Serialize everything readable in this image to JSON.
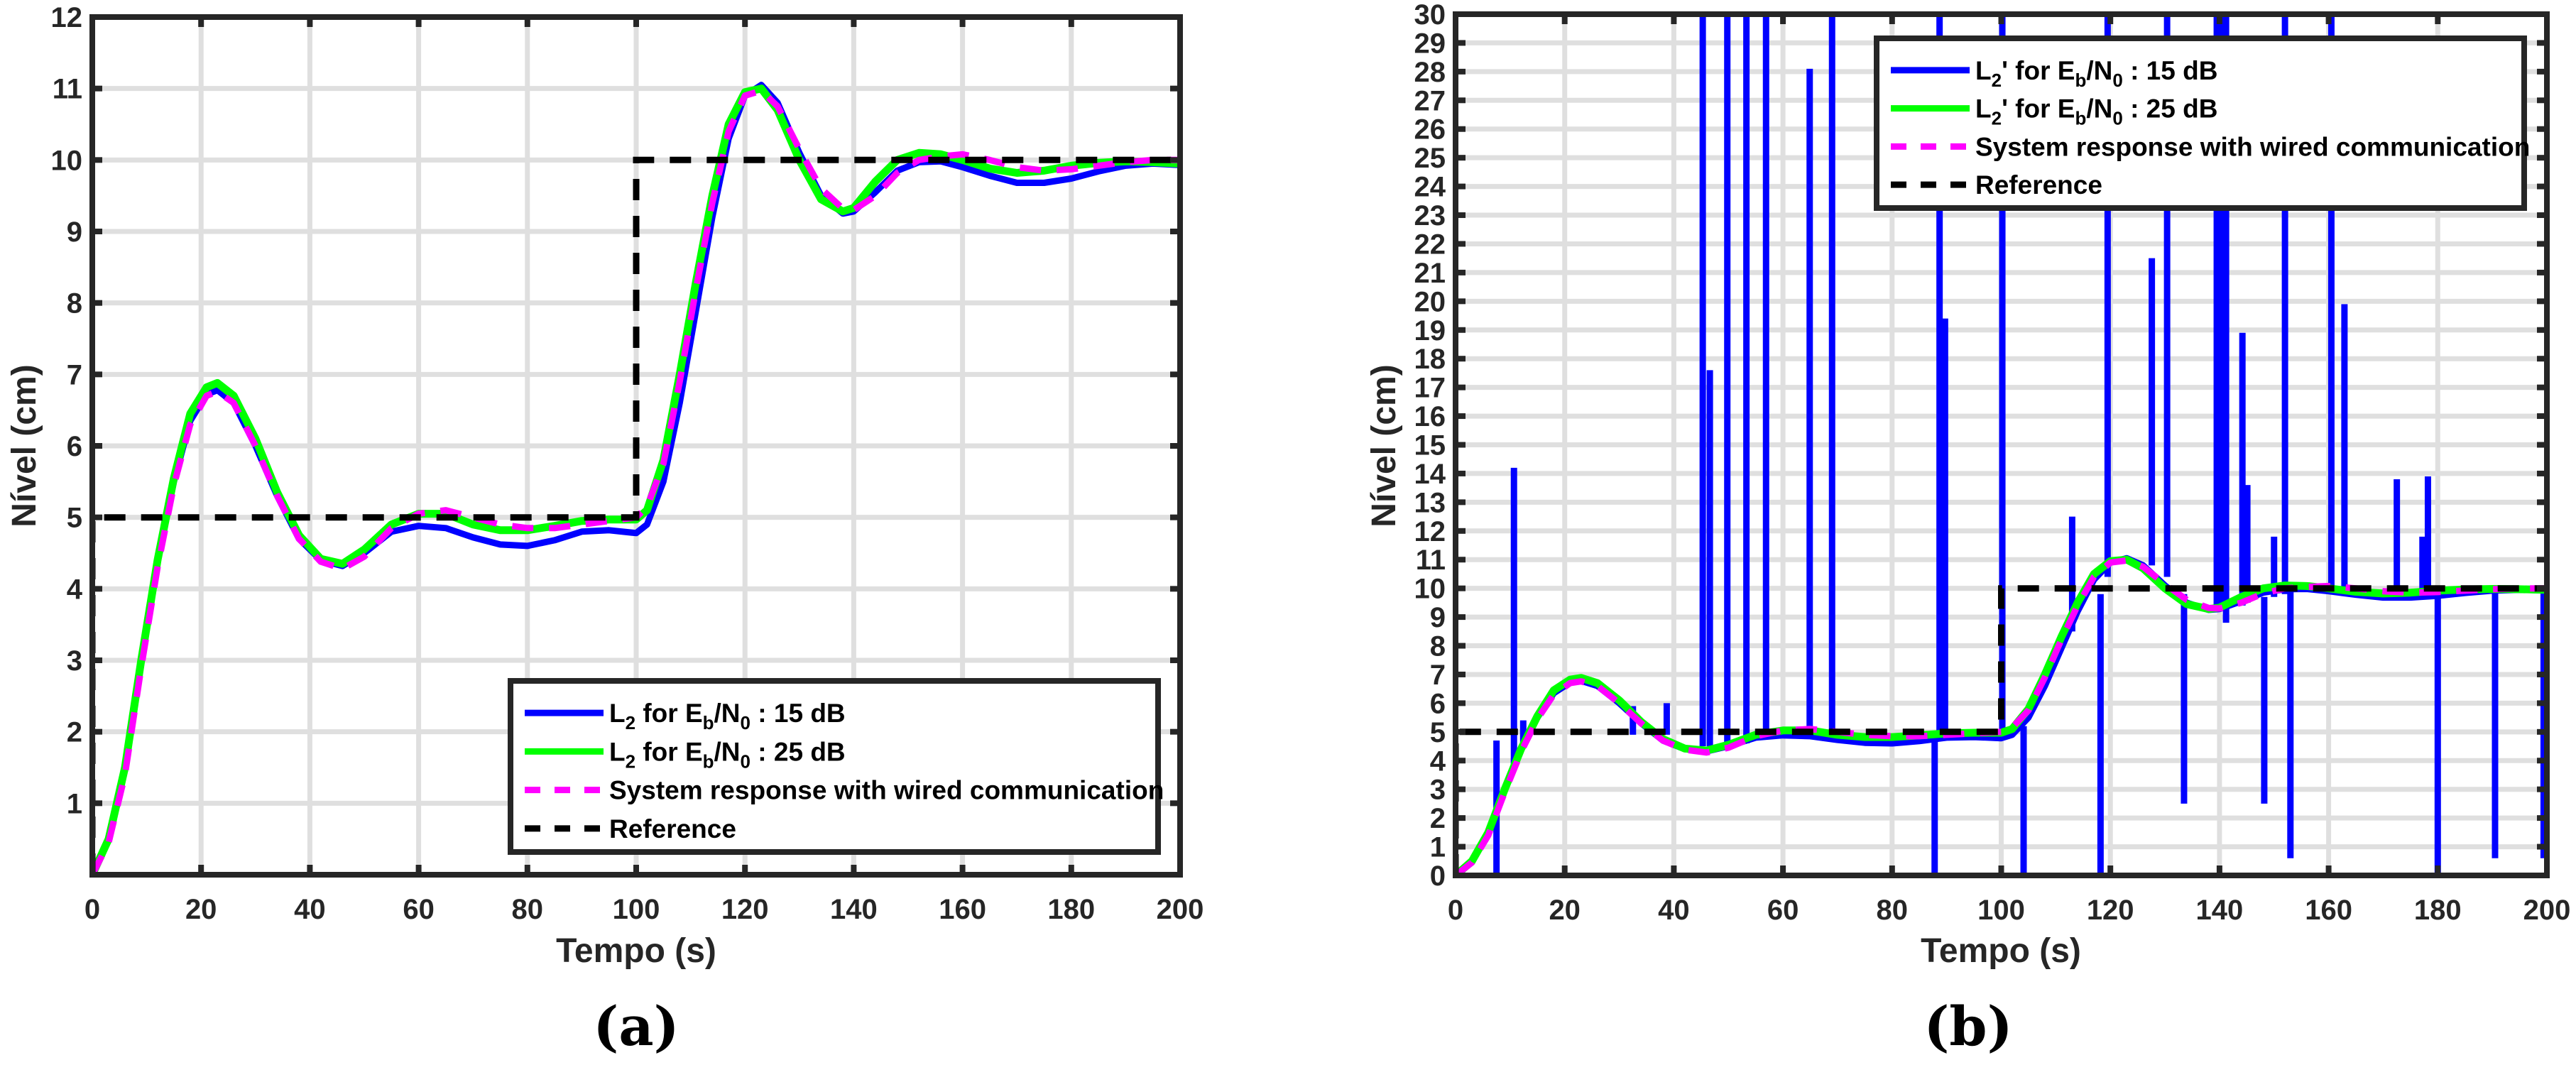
{
  "figure": {
    "panels": [
      {
        "caption": "(a)",
        "xlabel": "Tempo (s)",
        "ylabel": "Nível (cm)",
        "legend": [
          {
            "label": "L2 for Eb/N0 : 15 dB",
            "parts": [
              "L",
              "2",
              " for E",
              "b",
              "/N",
              "0",
              " : 15 dB"
            ],
            "color": "#0000ff",
            "style": "solid"
          },
          {
            "label": "L2 for Eb/N0 : 25 dB",
            "parts": [
              "L",
              "2",
              " for E",
              "b",
              "/N",
              "0",
              " : 25 dB"
            ],
            "color": "#00ff00",
            "style": "solid"
          },
          {
            "label": "System response with wired communication",
            "color": "#ff00ff",
            "style": "dashed"
          },
          {
            "label": "Reference",
            "color": "#000000",
            "style": "dashed"
          }
        ]
      },
      {
        "caption": "(b)",
        "xlabel": "Tempo (s)",
        "ylabel": "Nível (cm)",
        "legend": [
          {
            "label": "L2' for Eb/N0 : 15 dB",
            "parts": [
              "L",
              "2",
              "' for E",
              "b",
              "/N",
              "0",
              " : 15 dB"
            ],
            "color": "#0000ff",
            "style": "solid"
          },
          {
            "label": "L2' for Eb/N0 : 25 dB",
            "parts": [
              "L",
              "2",
              "' for E",
              "b",
              "/N",
              "0",
              " : 25 dB"
            ],
            "color": "#00ff00",
            "style": "solid"
          },
          {
            "label": "System response with wired communication",
            "color": "#ff00ff",
            "style": "dashed"
          },
          {
            "label": "Reference",
            "color": "#000000",
            "style": "dashed"
          }
        ]
      }
    ],
    "colors": {
      "axis": "#262626",
      "grid": "#dfdfdf",
      "blue": "#0000ff",
      "green": "#00ff00",
      "magenta": "#ff00ff",
      "reference": "#000000"
    }
  },
  "chart_data": [
    {
      "type": "line",
      "title": "(a)",
      "xlabel": "Tempo (s)",
      "ylabel": "Nível (cm)",
      "xlim": [
        0,
        200
      ],
      "ylim": [
        0,
        12
      ],
      "xticks": [
        0,
        20,
        40,
        60,
        80,
        100,
        120,
        140,
        160,
        180,
        200
      ],
      "yticks": [
        1,
        2,
        3,
        4,
        5,
        6,
        7,
        8,
        9,
        10,
        11,
        12
      ],
      "grid": true,
      "legend_position": "lower right",
      "x": [
        0,
        3,
        6,
        9,
        12,
        15,
        18,
        21,
        23,
        26,
        30,
        34,
        38,
        42,
        46,
        50,
        55,
        60,
        65,
        70,
        75,
        80,
        85,
        90,
        95,
        100,
        102,
        105,
        108,
        111,
        114,
        117,
        120,
        123,
        126,
        130,
        134,
        138,
        140,
        144,
        148,
        152,
        156,
        160,
        165,
        170,
        175,
        180,
        185,
        190,
        195,
        200
      ],
      "series": [
        {
          "name": "L2 for Eb/N0 : 15 dB",
          "color": "#0000ff",
          "style": "solid",
          "values": [
            0,
            0.5,
            1.5,
            3.0,
            4.4,
            5.5,
            6.35,
            6.72,
            6.78,
            6.6,
            6.0,
            5.3,
            4.7,
            4.4,
            4.32,
            4.5,
            4.8,
            4.88,
            4.85,
            4.72,
            4.62,
            4.6,
            4.68,
            4.8,
            4.82,
            4.78,
            4.9,
            5.5,
            6.6,
            7.9,
            9.2,
            10.3,
            10.9,
            11.05,
            10.8,
            10.1,
            9.5,
            9.25,
            9.28,
            9.55,
            9.85,
            9.97,
            9.98,
            9.9,
            9.78,
            9.68,
            9.68,
            9.74,
            9.84,
            9.92,
            9.95,
            9.93
          ]
        },
        {
          "name": "L2 for Eb/N0 : 25 dB",
          "color": "#00ff00",
          "style": "solid",
          "values": [
            0,
            0.5,
            1.5,
            3.0,
            4.4,
            5.55,
            6.45,
            6.82,
            6.88,
            6.7,
            6.1,
            5.35,
            4.75,
            4.42,
            4.35,
            4.55,
            4.9,
            5.05,
            5.05,
            4.9,
            4.82,
            4.82,
            4.88,
            4.95,
            4.97,
            4.97,
            5.1,
            5.8,
            7.0,
            8.3,
            9.5,
            10.5,
            10.95,
            11.0,
            10.7,
            10.0,
            9.45,
            9.28,
            9.33,
            9.7,
            10.0,
            10.1,
            10.08,
            10.0,
            9.88,
            9.82,
            9.85,
            9.92,
            9.96,
            9.98,
            9.97,
            9.95
          ]
        },
        {
          "name": "System response with wired communication",
          "color": "#ff00ff",
          "style": "dashed",
          "values": [
            0,
            0.45,
            1.4,
            2.9,
            4.3,
            5.45,
            6.3,
            6.7,
            6.76,
            6.6,
            6.0,
            5.3,
            4.7,
            4.38,
            4.28,
            4.45,
            4.85,
            5.05,
            5.1,
            5.0,
            4.9,
            4.85,
            4.85,
            4.9,
            4.95,
            5.0,
            5.15,
            5.75,
            6.9,
            8.2,
            9.4,
            10.4,
            10.9,
            10.97,
            10.75,
            10.15,
            9.6,
            9.32,
            9.3,
            9.5,
            9.82,
            10.0,
            10.05,
            10.08,
            10.0,
            9.9,
            9.85,
            9.87,
            9.92,
            9.97,
            10.0,
            10.0
          ]
        },
        {
          "name": "Reference",
          "color": "#000000",
          "style": "dashed",
          "x": [
            0,
            0,
            100,
            100,
            200
          ],
          "values": [
            0,
            5,
            5,
            10,
            10
          ]
        }
      ]
    },
    {
      "type": "line",
      "title": "(b)",
      "xlabel": "Tempo (s)",
      "ylabel": "Nível (cm)",
      "xlim": [
        0,
        200
      ],
      "ylim": [
        0,
        30
      ],
      "xticks": [
        0,
        20,
        40,
        60,
        80,
        100,
        120,
        140,
        160,
        180,
        200
      ],
      "yticks": [
        0,
        1,
        2,
        3,
        4,
        5,
        6,
        7,
        8,
        9,
        10,
        11,
        12,
        13,
        14,
        15,
        16,
        17,
        18,
        19,
        20,
        21,
        22,
        23,
        24,
        25,
        26,
        27,
        28,
        29,
        30
      ],
      "grid": true,
      "legend_position": "upper right",
      "x": [
        0,
        3,
        6,
        9,
        12,
        15,
        18,
        21,
        23,
        26,
        30,
        34,
        38,
        42,
        46,
        50,
        55,
        60,
        65,
        70,
        75,
        80,
        85,
        90,
        95,
        100,
        102,
        105,
        108,
        111,
        114,
        117,
        120,
        123,
        126,
        130,
        134,
        138,
        140,
        144,
        148,
        152,
        156,
        160,
        165,
        170,
        175,
        180,
        185,
        190,
        195,
        200
      ],
      "series": [
        {
          "name": "L2' for Eb/N0 : 15 dB",
          "color": "#0000ff",
          "style": "solid",
          "values": [
            0,
            0.5,
            1.5,
            3.0,
            4.4,
            5.5,
            6.35,
            6.72,
            6.78,
            6.6,
            6.0,
            5.3,
            4.7,
            4.4,
            4.32,
            4.5,
            4.8,
            4.88,
            4.85,
            4.72,
            4.62,
            4.6,
            4.68,
            4.8,
            4.82,
            4.78,
            4.9,
            5.5,
            6.6,
            7.9,
            9.2,
            10.3,
            10.9,
            11.05,
            10.8,
            10.1,
            9.5,
            9.25,
            9.28,
            9.55,
            9.85,
            9.97,
            9.98,
            9.9,
            9.78,
            9.68,
            9.68,
            9.74,
            9.84,
            9.92,
            9.95,
            9.93
          ],
          "spikes": [
            {
              "x": 7.5,
              "from": 0,
              "to": 4.7
            },
            {
              "x": 10.7,
              "from": 3.8,
              "to": 14.2
            },
            {
              "x": 12.4,
              "from": 4.5,
              "to": 5.4
            },
            {
              "x": 32.5,
              "from": 4.9,
              "to": 5.9
            },
            {
              "x": 38.7,
              "from": 4.9,
              "to": 6.0
            },
            {
              "x": 45.3,
              "from": 4.5,
              "to": 30
            },
            {
              "x": 46.6,
              "from": 4.5,
              "to": 17.6
            },
            {
              "x": 49.8,
              "from": 4.4,
              "to": 30
            },
            {
              "x": 53.3,
              "from": 4.6,
              "to": 30
            },
            {
              "x": 56.9,
              "from": 4.8,
              "to": 30
            },
            {
              "x": 64.9,
              "from": 4.9,
              "to": 28.1
            },
            {
              "x": 69.0,
              "from": 4.9,
              "to": 30
            },
            {
              "x": 87.8,
              "from": 0,
              "to": 4.9
            },
            {
              "x": 88.7,
              "from": 4.8,
              "to": 30
            },
            {
              "x": 89.7,
              "from": 4.8,
              "to": 19.4
            },
            {
              "x": 100.2,
              "from": 4.8,
              "to": 30
            },
            {
              "x": 104.1,
              "from": 0,
              "to": 5.2
            },
            {
              "x": 113.0,
              "from": 8.5,
              "to": 12.5
            },
            {
              "x": 118.2,
              "from": 0,
              "to": 9.8
            },
            {
              "x": 119.5,
              "from": 10.4,
              "to": 30
            },
            {
              "x": 127.6,
              "from": 10.8,
              "to": 21.5
            },
            {
              "x": 130.4,
              "from": 10.4,
              "to": 30
            },
            {
              "x": 133.5,
              "from": 2.5,
              "to": 9.8
            },
            {
              "x": 139.5,
              "from": 9.2,
              "to": 30
            },
            {
              "x": 140.5,
              "from": 9.2,
              "to": 30
            },
            {
              "x": 141.2,
              "from": 8.8,
              "to": 30
            },
            {
              "x": 144.2,
              "from": 9.4,
              "to": 18.9
            },
            {
              "x": 145.1,
              "from": 9.5,
              "to": 13.6
            },
            {
              "x": 148.2,
              "from": 2.5,
              "to": 9.7
            },
            {
              "x": 150.0,
              "from": 9.7,
              "to": 11.8
            },
            {
              "x": 152.0,
              "from": 9.8,
              "to": 30
            },
            {
              "x": 153.0,
              "from": 0.6,
              "to": 9.9
            },
            {
              "x": 160.5,
              "from": 9.9,
              "to": 30
            },
            {
              "x": 162.9,
              "from": 9.8,
              "to": 19.9
            },
            {
              "x": 172.5,
              "from": 9.7,
              "to": 13.8
            },
            {
              "x": 177.2,
              "from": 9.7,
              "to": 11.8
            },
            {
              "x": 178.2,
              "from": 9.7,
              "to": 13.9
            },
            {
              "x": 180.0,
              "from": 0,
              "to": 9.7
            },
            {
              "x": 190.5,
              "from": 0.6,
              "to": 9.9
            },
            {
              "x": 199.4,
              "from": 0.6,
              "to": 10.0
            }
          ]
        },
        {
          "name": "L2' for Eb/N0 : 25 dB",
          "color": "#00ff00",
          "style": "solid",
          "values": [
            0,
            0.5,
            1.5,
            3.0,
            4.4,
            5.55,
            6.45,
            6.82,
            6.88,
            6.7,
            6.1,
            5.35,
            4.75,
            4.42,
            4.35,
            4.55,
            4.9,
            5.05,
            5.05,
            4.9,
            4.82,
            4.82,
            4.88,
            4.95,
            4.97,
            4.97,
            5.1,
            5.8,
            7.0,
            8.3,
            9.5,
            10.5,
            10.95,
            11.0,
            10.7,
            10.0,
            9.45,
            9.28,
            9.33,
            9.7,
            10.0,
            10.1,
            10.08,
            10.0,
            9.88,
            9.82,
            9.85,
            9.92,
            9.96,
            9.98,
            9.97,
            9.95
          ]
        },
        {
          "name": "System response with wired communication",
          "color": "#ff00ff",
          "style": "dashed",
          "values": [
            0,
            0.45,
            1.4,
            2.9,
            4.3,
            5.45,
            6.3,
            6.7,
            6.76,
            6.6,
            6.0,
            5.3,
            4.7,
            4.38,
            4.28,
            4.45,
            4.85,
            5.05,
            5.1,
            5.0,
            4.9,
            4.85,
            4.85,
            4.9,
            4.95,
            5.0,
            5.15,
            5.75,
            6.9,
            8.2,
            9.4,
            10.4,
            10.9,
            10.97,
            10.75,
            10.15,
            9.6,
            9.32,
            9.3,
            9.5,
            9.82,
            10.0,
            10.05,
            10.08,
            10.0,
            9.9,
            9.85,
            9.87,
            9.92,
            9.97,
            10.0,
            10.0
          ]
        },
        {
          "name": "Reference",
          "color": "#000000",
          "style": "dashed",
          "x": [
            0,
            0,
            100,
            100,
            200
          ],
          "values": [
            0,
            5,
            5,
            10,
            10
          ]
        }
      ]
    }
  ]
}
